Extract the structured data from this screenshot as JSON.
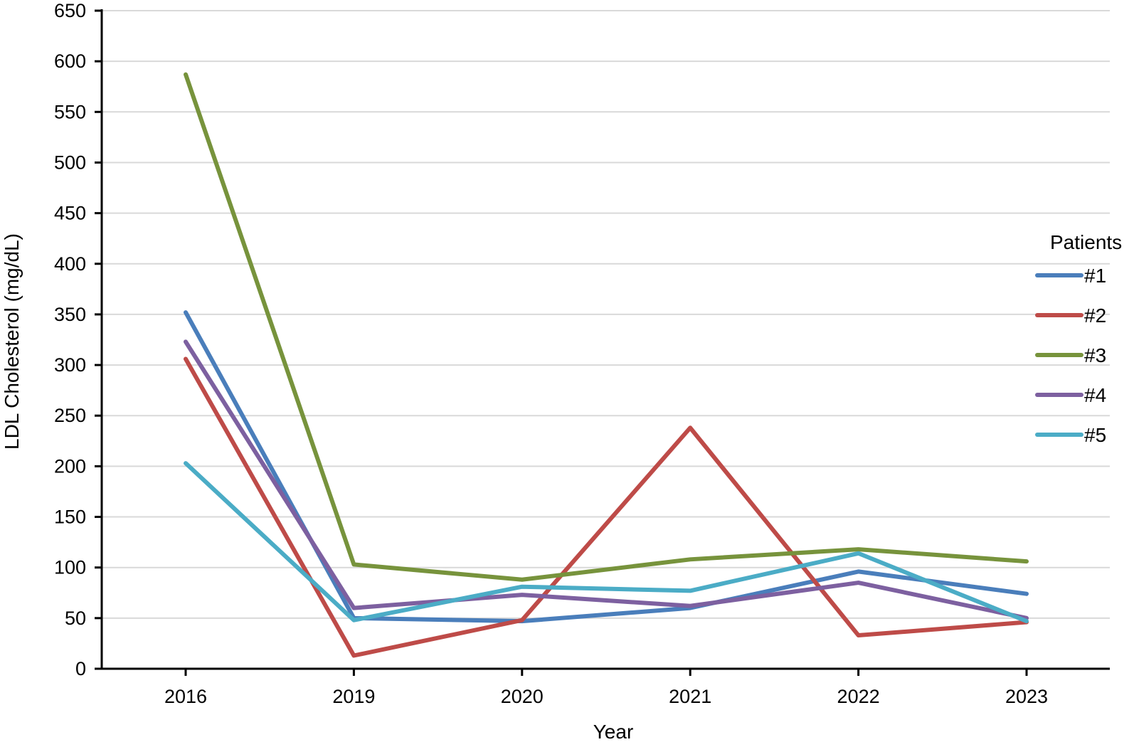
{
  "chart_data": {
    "type": "line",
    "title": "",
    "xlabel": "Year",
    "ylabel": "LDL Cholesterol (mg/dL)",
    "categories": [
      "2016",
      "2019",
      "2020",
      "2021",
      "2022",
      "2023"
    ],
    "ylim": [
      0,
      650
    ],
    "yticks": [
      0,
      50,
      100,
      150,
      200,
      250,
      300,
      350,
      400,
      450,
      500,
      550,
      600,
      650
    ],
    "grid": true,
    "legend": {
      "title": "Patients",
      "position": "right"
    },
    "series": [
      {
        "name": "#1",
        "color": "#4a7ebb",
        "values": [
          352,
          50,
          47,
          60,
          96,
          74
        ]
      },
      {
        "name": "#2",
        "color": "#be4b48",
        "values": [
          306,
          13,
          48,
          238,
          33,
          46
        ]
      },
      {
        "name": "#3",
        "color": "#77933c",
        "values": [
          587,
          103,
          88,
          108,
          118,
          106
        ]
      },
      {
        "name": "#4",
        "color": "#7d60a0",
        "values": [
          323,
          60,
          73,
          62,
          85,
          50
        ]
      },
      {
        "name": "#5",
        "color": "#4bacc6",
        "values": [
          203,
          48,
          81,
          77,
          114,
          47
        ]
      }
    ]
  }
}
